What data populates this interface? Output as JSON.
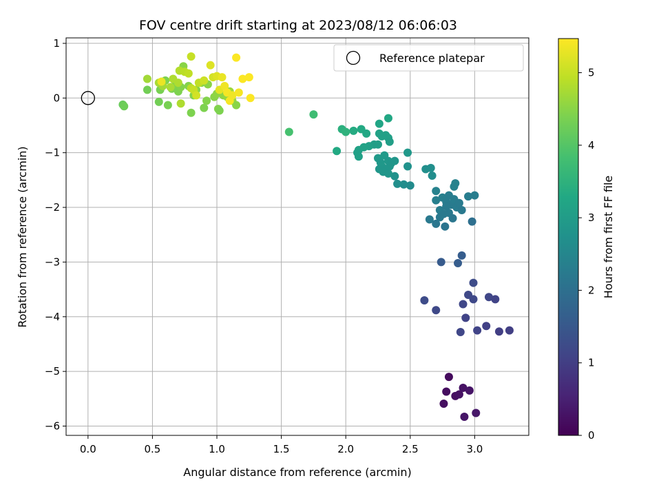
{
  "chart_data": {
    "type": "scatter",
    "title": "FOV centre drift starting at 2023/08/12 06:06:03",
    "xlabel": "Angular distance from reference (arcmin)",
    "ylabel": "Rotation from reference (arcmin)",
    "xlim": [
      -0.17,
      3.42
    ],
    "ylim": [
      -6.17,
      1.1
    ],
    "xticks": [
      0.0,
      0.5,
      1.0,
      1.5,
      2.0,
      2.5,
      3.0
    ],
    "xtick_labels": [
      "0.0",
      "0.5",
      "1.0",
      "1.5",
      "2.0",
      "2.5",
      "3.0"
    ],
    "yticks": [
      1,
      0,
      -1,
      -2,
      -3,
      -4,
      -5,
      -6
    ],
    "ytick_labels": [
      "1",
      "0",
      "−1",
      "−2",
      "−3",
      "−4",
      "−5",
      "−6"
    ],
    "grid": true,
    "colormap": "viridis",
    "colorbar": {
      "label": "Hours from first FF file",
      "range": [
        0,
        5.47
      ],
      "ticks": [
        0,
        1,
        2,
        3,
        4,
        5
      ],
      "tick_labels": [
        "0",
        "1",
        "2",
        "3",
        "4",
        "5"
      ]
    },
    "legend": {
      "placement": "top-right",
      "entries": [
        "Reference platepar"
      ]
    },
    "reference_point": {
      "x": 0,
      "y": 0
    },
    "series": [
      {
        "points": [
          [
            2.8,
            -5.1,
            0.15
          ],
          [
            2.78,
            -5.37,
            0.18
          ],
          [
            2.76,
            -5.59,
            0.2
          ],
          [
            2.85,
            -5.45,
            0.22
          ],
          [
            2.88,
            -5.42,
            0.25
          ],
          [
            2.91,
            -5.3,
            0.27
          ],
          [
            2.96,
            -5.35,
            0.3
          ],
          [
            2.92,
            -5.83,
            0.32
          ],
          [
            3.01,
            -5.76,
            0.35
          ],
          [
            2.61,
            -3.7,
            1.25
          ],
          [
            2.7,
            -3.88,
            1.2
          ],
          [
            2.89,
            -4.28,
            1.15
          ],
          [
            3.02,
            -4.25,
            1.1
          ],
          [
            3.09,
            -4.17,
            1.05
          ],
          [
            3.19,
            -4.27,
            1.0
          ],
          [
            3.27,
            -4.25,
            1.0
          ],
          [
            2.93,
            -4.02,
            1.1
          ],
          [
            2.91,
            -3.77,
            1.15
          ],
          [
            2.95,
            -3.6,
            1.2
          ],
          [
            2.99,
            -3.68,
            1.2
          ],
          [
            2.99,
            -3.38,
            1.25
          ],
          [
            3.11,
            -3.64,
            1.15
          ],
          [
            3.16,
            -3.68,
            1.1
          ],
          [
            2.74,
            -3.0,
            1.55
          ],
          [
            2.87,
            -3.02,
            1.6
          ],
          [
            2.9,
            -2.88,
            1.6
          ],
          [
            2.65,
            -2.22,
            2.2
          ],
          [
            2.7,
            -2.3,
            2.15
          ],
          [
            2.77,
            -2.35,
            2.1
          ],
          [
            2.98,
            -2.26,
            2.0
          ],
          [
            2.7,
            -1.7,
            2.4
          ],
          [
            2.7,
            -1.87,
            2.35
          ],
          [
            2.73,
            -2.05,
            2.3
          ],
          [
            2.75,
            -1.82,
            2.35
          ],
          [
            2.78,
            -1.9,
            2.3
          ],
          [
            2.8,
            -1.78,
            2.3
          ],
          [
            2.82,
            -1.95,
            2.25
          ],
          [
            2.84,
            -1.85,
            2.3
          ],
          [
            2.86,
            -2.0,
            2.25
          ],
          [
            2.88,
            -1.92,
            2.25
          ],
          [
            2.8,
            -2.1,
            2.2
          ],
          [
            2.73,
            -2.18,
            2.2
          ],
          [
            2.76,
            -2.12,
            2.2
          ],
          [
            2.84,
            -1.62,
            2.4
          ],
          [
            2.85,
            -1.56,
            2.4
          ],
          [
            2.9,
            -2.05,
            2.2
          ],
          [
            2.95,
            -1.8,
            2.3
          ],
          [
            3.0,
            -1.78,
            2.3
          ],
          [
            2.83,
            -2.2,
            2.15
          ],
          [
            2.78,
            -1.98,
            2.25
          ],
          [
            2.62,
            -1.3,
            2.7
          ],
          [
            2.66,
            -1.28,
            2.7
          ],
          [
            2.67,
            -1.42,
            2.65
          ],
          [
            2.5,
            -1.6,
            2.6
          ],
          [
            2.45,
            -1.58,
            2.65
          ],
          [
            2.4,
            -1.57,
            2.7
          ],
          [
            2.38,
            -1.43,
            2.75
          ],
          [
            2.48,
            -1.25,
            2.75
          ],
          [
            2.25,
            -1.1,
            2.95
          ],
          [
            2.27,
            -1.18,
            2.9
          ],
          [
            2.28,
            -1.25,
            2.9
          ],
          [
            2.3,
            -1.05,
            2.95
          ],
          [
            2.31,
            -1.3,
            2.85
          ],
          [
            2.33,
            -1.15,
            2.9
          ],
          [
            2.35,
            -1.2,
            2.85
          ],
          [
            2.38,
            -1.15,
            2.85
          ],
          [
            2.48,
            -1.0,
            2.9
          ],
          [
            2.26,
            -1.3,
            2.85
          ],
          [
            2.29,
            -1.35,
            2.85
          ],
          [
            2.33,
            -1.38,
            2.85
          ],
          [
            2.34,
            -1.25,
            2.85
          ],
          [
            2.22,
            -0.85,
            3.05
          ],
          [
            2.25,
            -0.85,
            3.05
          ],
          [
            2.26,
            -0.65,
            3.15
          ],
          [
            2.28,
            -0.7,
            3.1
          ],
          [
            2.31,
            -0.68,
            3.1
          ],
          [
            2.33,
            -0.73,
            3.1
          ],
          [
            2.34,
            -0.8,
            3.05
          ],
          [
            2.26,
            -0.47,
            3.2
          ],
          [
            2.33,
            -0.37,
            3.25
          ],
          [
            2.18,
            -0.88,
            3.1
          ],
          [
            2.14,
            -0.9,
            3.15
          ],
          [
            2.1,
            -0.95,
            3.15
          ],
          [
            2.1,
            -1.07,
            3.1
          ],
          [
            2.09,
            -1.0,
            3.1
          ],
          [
            2.12,
            -0.57,
            3.3
          ],
          [
            2.16,
            -0.65,
            3.25
          ],
          [
            2.06,
            -0.6,
            3.35
          ],
          [
            1.97,
            -0.57,
            3.45
          ],
          [
            2.0,
            -0.62,
            3.5
          ],
          [
            1.93,
            -0.97,
            3.3
          ],
          [
            1.75,
            -0.3,
            3.75
          ],
          [
            1.56,
            -0.62,
            3.85
          ],
          [
            0.27,
            -0.12,
            4.2
          ],
          [
            0.28,
            -0.15,
            4.25
          ],
          [
            0.46,
            0.15,
            4.3
          ],
          [
            0.55,
            -0.07,
            4.3
          ],
          [
            0.56,
            0.15,
            4.35
          ],
          [
            0.6,
            0.32,
            4.4
          ],
          [
            0.62,
            -0.13,
            4.35
          ],
          [
            0.65,
            0.17,
            4.4
          ],
          [
            0.67,
            0.22,
            4.45
          ],
          [
            0.7,
            0.12,
            4.4
          ],
          [
            0.72,
            0.2,
            4.45
          ],
          [
            0.74,
            0.58,
            4.5
          ],
          [
            0.78,
            0.22,
            4.45
          ],
          [
            0.8,
            -0.27,
            4.4
          ],
          [
            0.82,
            0.05,
            4.45
          ],
          [
            0.84,
            0.15,
            4.5
          ],
          [
            0.88,
            0.28,
            4.5
          ],
          [
            0.9,
            -0.18,
            4.4
          ],
          [
            0.92,
            -0.05,
            4.45
          ],
          [
            0.93,
            0.25,
            4.5
          ],
          [
            0.98,
            0.02,
            4.5
          ],
          [
            1.0,
            0.08,
            4.55
          ],
          [
            1.01,
            -0.2,
            4.45
          ],
          [
            1.02,
            -0.23,
            4.4
          ],
          [
            1.05,
            0.05,
            4.55
          ],
          [
            1.08,
            0.02,
            4.6
          ],
          [
            1.1,
            0.12,
            4.65
          ],
          [
            1.12,
            -0.05,
            4.6
          ],
          [
            1.15,
            -0.13,
            4.5
          ],
          [
            0.46,
            0.35,
            4.7
          ],
          [
            0.55,
            0.28,
            4.75
          ],
          [
            0.58,
            0.22,
            4.7
          ],
          [
            0.64,
            0.2,
            4.75
          ],
          [
            0.66,
            0.35,
            4.8
          ],
          [
            0.7,
            0.28,
            4.8
          ],
          [
            0.71,
            0.5,
            4.85
          ],
          [
            0.72,
            -0.1,
            4.8
          ],
          [
            0.75,
            0.48,
            4.9
          ],
          [
            0.78,
            0.45,
            4.95
          ],
          [
            0.8,
            0.18,
            4.9
          ],
          [
            0.82,
            0.15,
            5.0
          ],
          [
            0.84,
            0.05,
            5.1
          ],
          [
            0.86,
            0.28,
            4.95
          ],
          [
            0.9,
            0.32,
            5.05
          ],
          [
            0.95,
            0.6,
            5.2
          ],
          [
            0.97,
            0.38,
            5.1
          ],
          [
            1.0,
            0.4,
            5.2
          ],
          [
            1.02,
            0.15,
            5.25
          ],
          [
            1.04,
            0.38,
            5.3
          ],
          [
            1.06,
            0.22,
            5.35
          ],
          [
            1.08,
            0.1,
            5.4
          ],
          [
            1.1,
            -0.05,
            5.4
          ],
          [
            1.12,
            0.05,
            5.35
          ],
          [
            1.15,
            0.74,
            5.45
          ],
          [
            1.17,
            0.1,
            5.4
          ],
          [
            1.2,
            0.35,
            5.45
          ],
          [
            1.25,
            0.38,
            5.45
          ],
          [
            1.26,
            0.0,
            5.45
          ],
          [
            0.8,
            0.76,
            5.0
          ],
          [
            0.57,
            0.3,
            5.3
          ]
        ]
      }
    ]
  }
}
